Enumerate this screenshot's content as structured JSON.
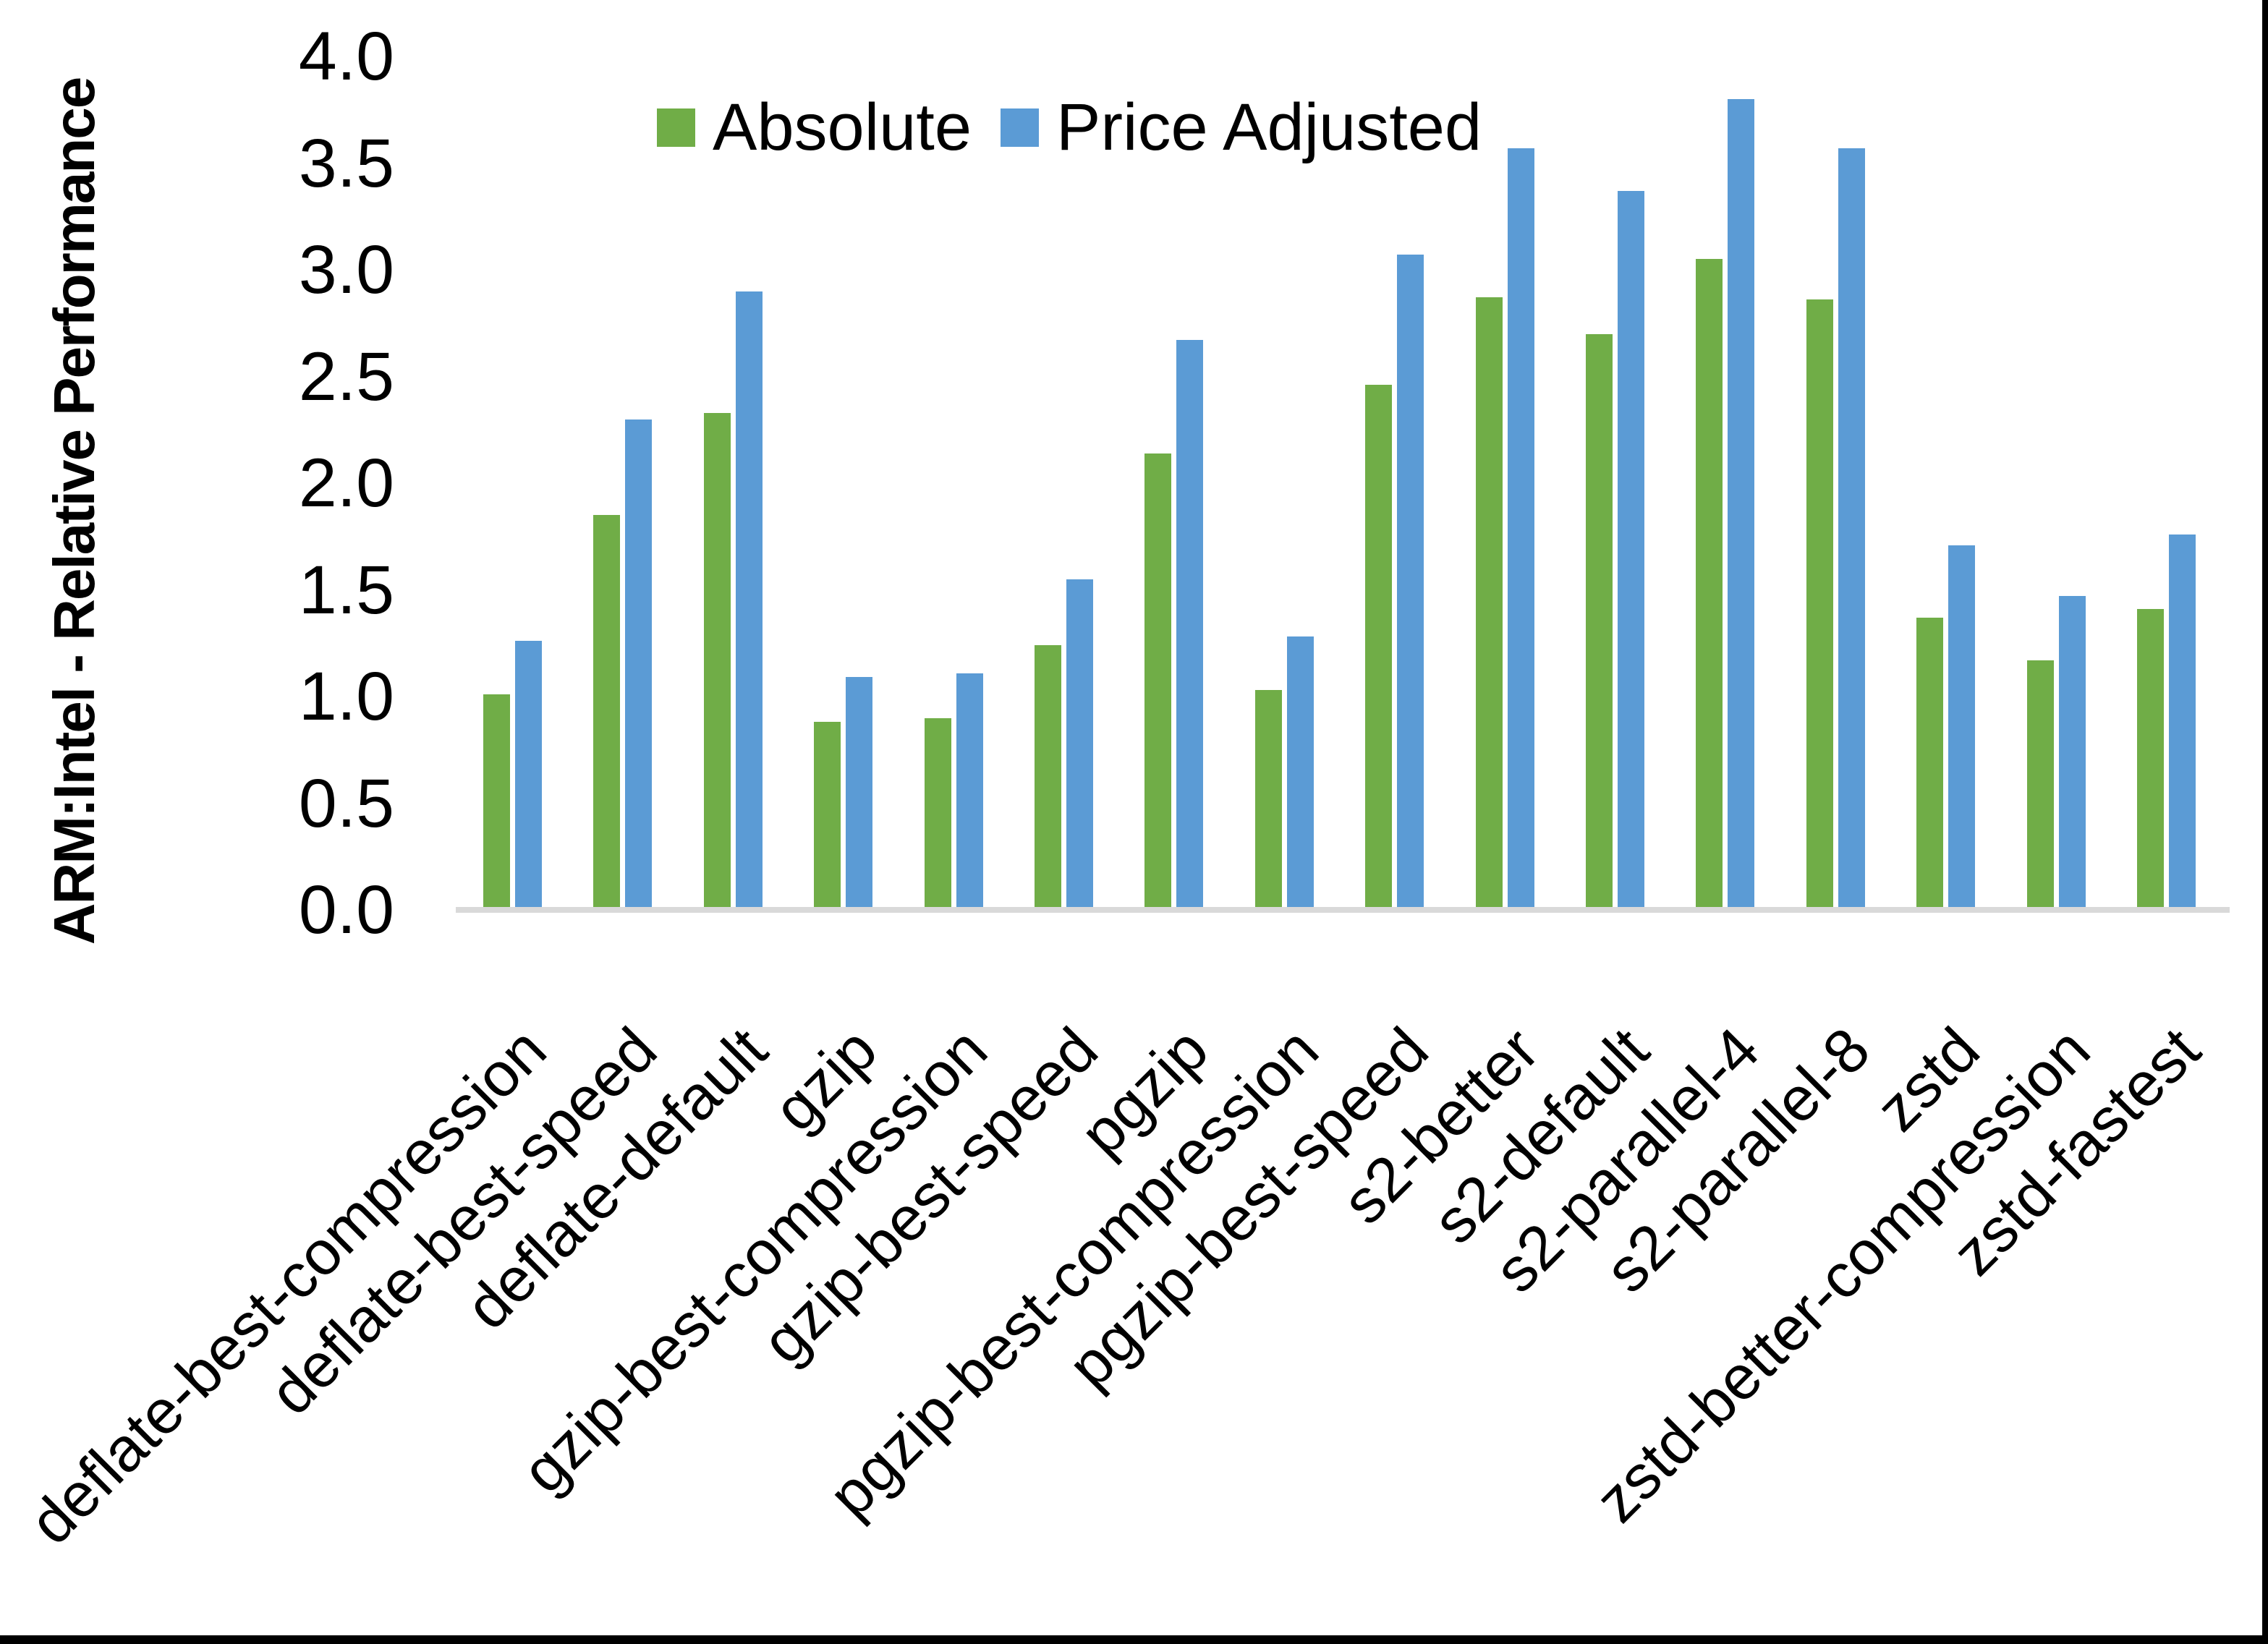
{
  "chart_data": {
    "type": "bar",
    "title": "",
    "ylabel": "ARM:Intel - Relative Performance",
    "xlabel": "",
    "ylim": [
      0,
      4.0
    ],
    "ytick_step": 0.5,
    "grid": false,
    "legend_position": "top-center",
    "categories": [
      "deflate-best-compression",
      "deflate-best-speed",
      "deflate-default",
      "gzip",
      "gzip-best-compression",
      "gzip-best-speed",
      "pgzip",
      "pgzip-best-compression",
      "pgzip-best-speed",
      "s2-better",
      "s2-default",
      "s2-parallel-4",
      "s2-parallel-8",
      "zstd",
      "zstd-better-compression",
      "zstd-fastest"
    ],
    "series": [
      {
        "name": "Absolute",
        "color": "#70AD47",
        "values": [
          1.01,
          1.85,
          2.33,
          0.88,
          0.9,
          1.24,
          2.14,
          1.03,
          2.46,
          2.87,
          2.7,
          3.05,
          2.86,
          1.37,
          1.17,
          1.41
        ]
      },
      {
        "name": "Price Adjusted",
        "color": "#5B9BD5",
        "values": [
          1.26,
          2.3,
          2.9,
          1.09,
          1.11,
          1.55,
          2.67,
          1.28,
          3.07,
          3.57,
          3.37,
          3.8,
          3.57,
          1.71,
          1.47,
          1.76
        ]
      }
    ]
  },
  "axis": {
    "y_ticks": [
      "4.0",
      "3.5",
      "3.0",
      "2.5",
      "2.0",
      "1.5",
      "1.0",
      "0.5",
      "0.0"
    ]
  },
  "frame": {
    "border_color": "#000000",
    "axis_line_color": "#D9D9D9"
  }
}
